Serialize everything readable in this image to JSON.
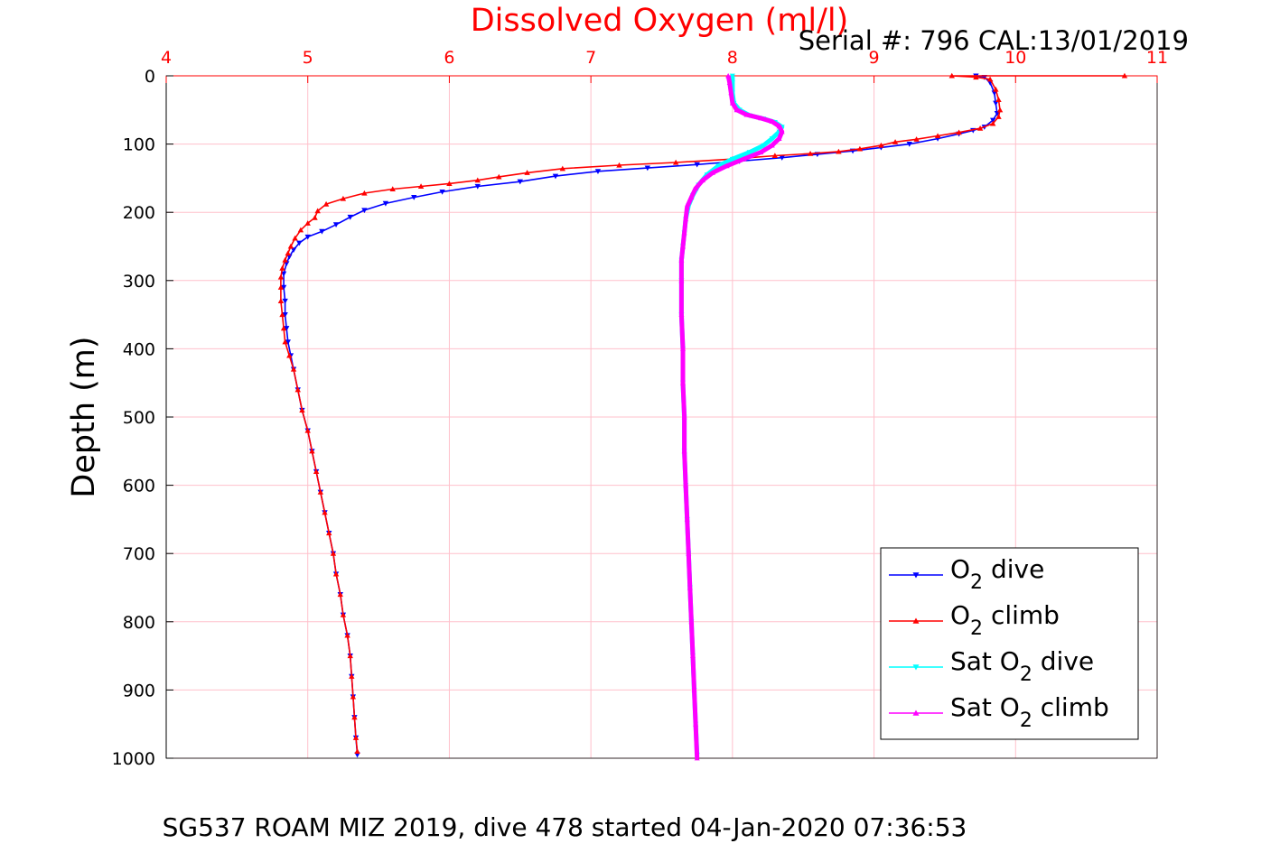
{
  "chart_data": {
    "type": "line",
    "title": "Dissolved Oxygen (ml/l)",
    "serial_text": "Serial #: 796  CAL:13/01/2019",
    "footer": "SG537 ROAM MIZ 2019, dive 478 started 04-Jan-2020 07:36:53",
    "ylabel": "Depth (m)",
    "xlabel": "",
    "xlim": [
      4,
      11
    ],
    "ylim": [
      0,
      1000
    ],
    "y_reversed": true,
    "x_axis_position": "top",
    "x_ticks": [
      "4",
      "5",
      "6",
      "7",
      "8",
      "9",
      "10",
      "11"
    ],
    "y_ticks": [
      "0",
      "100",
      "200",
      "300",
      "400",
      "500",
      "600",
      "700",
      "800",
      "900",
      "1000"
    ],
    "grid": true,
    "legend_position": "bottom-right",
    "colors": {
      "title": "#ff0000",
      "x_tick": "#ff0000",
      "grid": "#ffc0cb",
      "text": "#000000"
    },
    "series": [
      {
        "name": "O2 dive",
        "legend": {
          "main": "O",
          "sub": "2",
          "rest": " dive"
        },
        "color": "#0000ff",
        "marker": "triangle-down",
        "points": [
          [
            9.72,
            0
          ],
          [
            9.78,
            2
          ],
          [
            9.82,
            10
          ],
          [
            9.85,
            25
          ],
          [
            9.86,
            40
          ],
          [
            9.87,
            55
          ],
          [
            9.84,
            65
          ],
          [
            9.78,
            75
          ],
          [
            9.7,
            80
          ],
          [
            9.6,
            85
          ],
          [
            9.45,
            92
          ],
          [
            9.25,
            100
          ],
          [
            9.05,
            105
          ],
          [
            8.85,
            110
          ],
          [
            8.6,
            115
          ],
          [
            8.35,
            120
          ],
          [
            8.05,
            125
          ],
          [
            7.75,
            130
          ],
          [
            7.4,
            135
          ],
          [
            7.05,
            140
          ],
          [
            6.75,
            147
          ],
          [
            6.5,
            155
          ],
          [
            6.2,
            162
          ],
          [
            5.95,
            170
          ],
          [
            5.75,
            178
          ],
          [
            5.55,
            187
          ],
          [
            5.4,
            197
          ],
          [
            5.3,
            207
          ],
          [
            5.2,
            218
          ],
          [
            5.1,
            228
          ],
          [
            5.0,
            236
          ],
          [
            4.94,
            245
          ],
          [
            4.9,
            255
          ],
          [
            4.87,
            265
          ],
          [
            4.85,
            275
          ],
          [
            4.83,
            290
          ],
          [
            4.83,
            310
          ],
          [
            4.84,
            330
          ],
          [
            4.84,
            350
          ],
          [
            4.85,
            370
          ],
          [
            4.86,
            390
          ],
          [
            4.88,
            410
          ],
          [
            4.9,
            430
          ],
          [
            4.93,
            460
          ],
          [
            4.96,
            490
          ],
          [
            5.0,
            520
          ],
          [
            5.03,
            550
          ],
          [
            5.06,
            580
          ],
          [
            5.09,
            610
          ],
          [
            5.12,
            640
          ],
          [
            5.15,
            670
          ],
          [
            5.18,
            700
          ],
          [
            5.2,
            730
          ],
          [
            5.23,
            760
          ],
          [
            5.25,
            790
          ],
          [
            5.28,
            820
          ],
          [
            5.3,
            850
          ],
          [
            5.31,
            880
          ],
          [
            5.32,
            910
          ],
          [
            5.33,
            940
          ],
          [
            5.34,
            970
          ],
          [
            5.35,
            995
          ]
        ]
      },
      {
        "name": "O2 climb",
        "legend": {
          "main": "O",
          "sub": "2",
          "rest": " climb"
        },
        "color": "#ff0000",
        "marker": "triangle-up",
        "points": [
          [
            10.77,
            0
          ],
          [
            9.55,
            0
          ],
          [
            9.72,
            2
          ],
          [
            9.82,
            5
          ],
          [
            9.86,
            20
          ],
          [
            9.88,
            35
          ],
          [
            9.89,
            50
          ],
          [
            9.88,
            60
          ],
          [
            9.84,
            70
          ],
          [
            9.75,
            77
          ],
          [
            9.6,
            83
          ],
          [
            9.45,
            88
          ],
          [
            9.3,
            93
          ],
          [
            9.15,
            97
          ],
          [
            9.05,
            102
          ],
          [
            8.9,
            107
          ],
          [
            8.75,
            111
          ],
          [
            8.55,
            114
          ],
          [
            8.3,
            117
          ],
          [
            8.0,
            122
          ],
          [
            7.6,
            127
          ],
          [
            7.2,
            131
          ],
          [
            6.8,
            136
          ],
          [
            6.55,
            142
          ],
          [
            6.35,
            148
          ],
          [
            6.2,
            153
          ],
          [
            6.0,
            158
          ],
          [
            5.8,
            162
          ],
          [
            5.6,
            166
          ],
          [
            5.4,
            172
          ],
          [
            5.25,
            180
          ],
          [
            5.13,
            188
          ],
          [
            5.07,
            198
          ],
          [
            5.05,
            208
          ],
          [
            5.0,
            216
          ],
          [
            4.95,
            226
          ],
          [
            4.91,
            238
          ],
          [
            4.88,
            250
          ],
          [
            4.86,
            260
          ],
          [
            4.84,
            270
          ],
          [
            4.82,
            282
          ],
          [
            4.81,
            295
          ],
          [
            4.81,
            310
          ],
          [
            4.81,
            330
          ],
          [
            4.82,
            350
          ],
          [
            4.83,
            370
          ],
          [
            4.84,
            390
          ],
          [
            4.87,
            410
          ],
          [
            4.9,
            430
          ],
          [
            4.93,
            460
          ],
          [
            4.96,
            490
          ],
          [
            5.0,
            520
          ],
          [
            5.03,
            550
          ],
          [
            5.06,
            580
          ],
          [
            5.09,
            610
          ],
          [
            5.12,
            640
          ],
          [
            5.15,
            670
          ],
          [
            5.18,
            700
          ],
          [
            5.2,
            730
          ],
          [
            5.23,
            760
          ],
          [
            5.25,
            790
          ],
          [
            5.28,
            820
          ],
          [
            5.3,
            850
          ],
          [
            5.31,
            880
          ],
          [
            5.32,
            910
          ],
          [
            5.33,
            940
          ],
          [
            5.34,
            970
          ],
          [
            5.35,
            990
          ]
        ]
      },
      {
        "name": "Sat O2 dive",
        "legend": {
          "main": "Sat O",
          "sub": "2",
          "rest": " dive"
        },
        "color": "#00ffff",
        "marker": "triangle-down",
        "points": [
          [
            8.0,
            0
          ],
          [
            8.0,
            10
          ],
          [
            8.0,
            25
          ],
          [
            8.01,
            40
          ],
          [
            8.05,
            50
          ],
          [
            8.12,
            58
          ],
          [
            8.22,
            63
          ],
          [
            8.3,
            68
          ],
          [
            8.35,
            75
          ],
          [
            8.33,
            82
          ],
          [
            8.28,
            92
          ],
          [
            8.22,
            102
          ],
          [
            8.12,
            112
          ],
          [
            8.0,
            122
          ],
          [
            7.9,
            132
          ],
          [
            7.82,
            145
          ],
          [
            7.76,
            160
          ],
          [
            7.72,
            175
          ],
          [
            7.69,
            190
          ],
          [
            7.67,
            210
          ],
          [
            7.66,
            230
          ],
          [
            7.65,
            250
          ],
          [
            7.64,
            270
          ],
          [
            7.64,
            300
          ],
          [
            7.64,
            350
          ],
          [
            7.65,
            400
          ],
          [
            7.65,
            450
          ],
          [
            7.66,
            500
          ],
          [
            7.66,
            550
          ],
          [
            7.67,
            600
          ],
          [
            7.68,
            650
          ],
          [
            7.69,
            700
          ],
          [
            7.7,
            750
          ],
          [
            7.71,
            800
          ],
          [
            7.72,
            850
          ],
          [
            7.73,
            900
          ],
          [
            7.74,
            950
          ],
          [
            7.75,
            995
          ]
        ]
      },
      {
        "name": "Sat O2 climb",
        "legend": {
          "main": "Sat O",
          "sub": "2",
          "rest": " climb"
        },
        "color": "#ff00ff",
        "marker": "triangle-up",
        "points": [
          [
            7.97,
            0
          ],
          [
            7.98,
            10
          ],
          [
            7.99,
            25
          ],
          [
            8.0,
            40
          ],
          [
            8.03,
            50
          ],
          [
            8.1,
            57
          ],
          [
            8.2,
            62
          ],
          [
            8.28,
            67
          ],
          [
            8.33,
            74
          ],
          [
            8.35,
            82
          ],
          [
            8.33,
            92
          ],
          [
            8.28,
            102
          ],
          [
            8.2,
            112
          ],
          [
            8.08,
            122
          ],
          [
            7.96,
            132
          ],
          [
            7.86,
            142
          ],
          [
            7.79,
            153
          ],
          [
            7.74,
            165
          ],
          [
            7.71,
            178
          ],
          [
            7.68,
            192
          ],
          [
            7.67,
            210
          ],
          [
            7.66,
            230
          ],
          [
            7.65,
            250
          ],
          [
            7.64,
            270
          ],
          [
            7.64,
            300
          ],
          [
            7.64,
            350
          ],
          [
            7.65,
            400
          ],
          [
            7.65,
            450
          ],
          [
            7.66,
            500
          ],
          [
            7.66,
            550
          ],
          [
            7.67,
            600
          ],
          [
            7.68,
            650
          ],
          [
            7.69,
            700
          ],
          [
            7.7,
            750
          ],
          [
            7.71,
            800
          ],
          [
            7.72,
            850
          ],
          [
            7.73,
            900
          ],
          [
            7.74,
            950
          ],
          [
            7.75,
            1000
          ]
        ]
      }
    ]
  }
}
